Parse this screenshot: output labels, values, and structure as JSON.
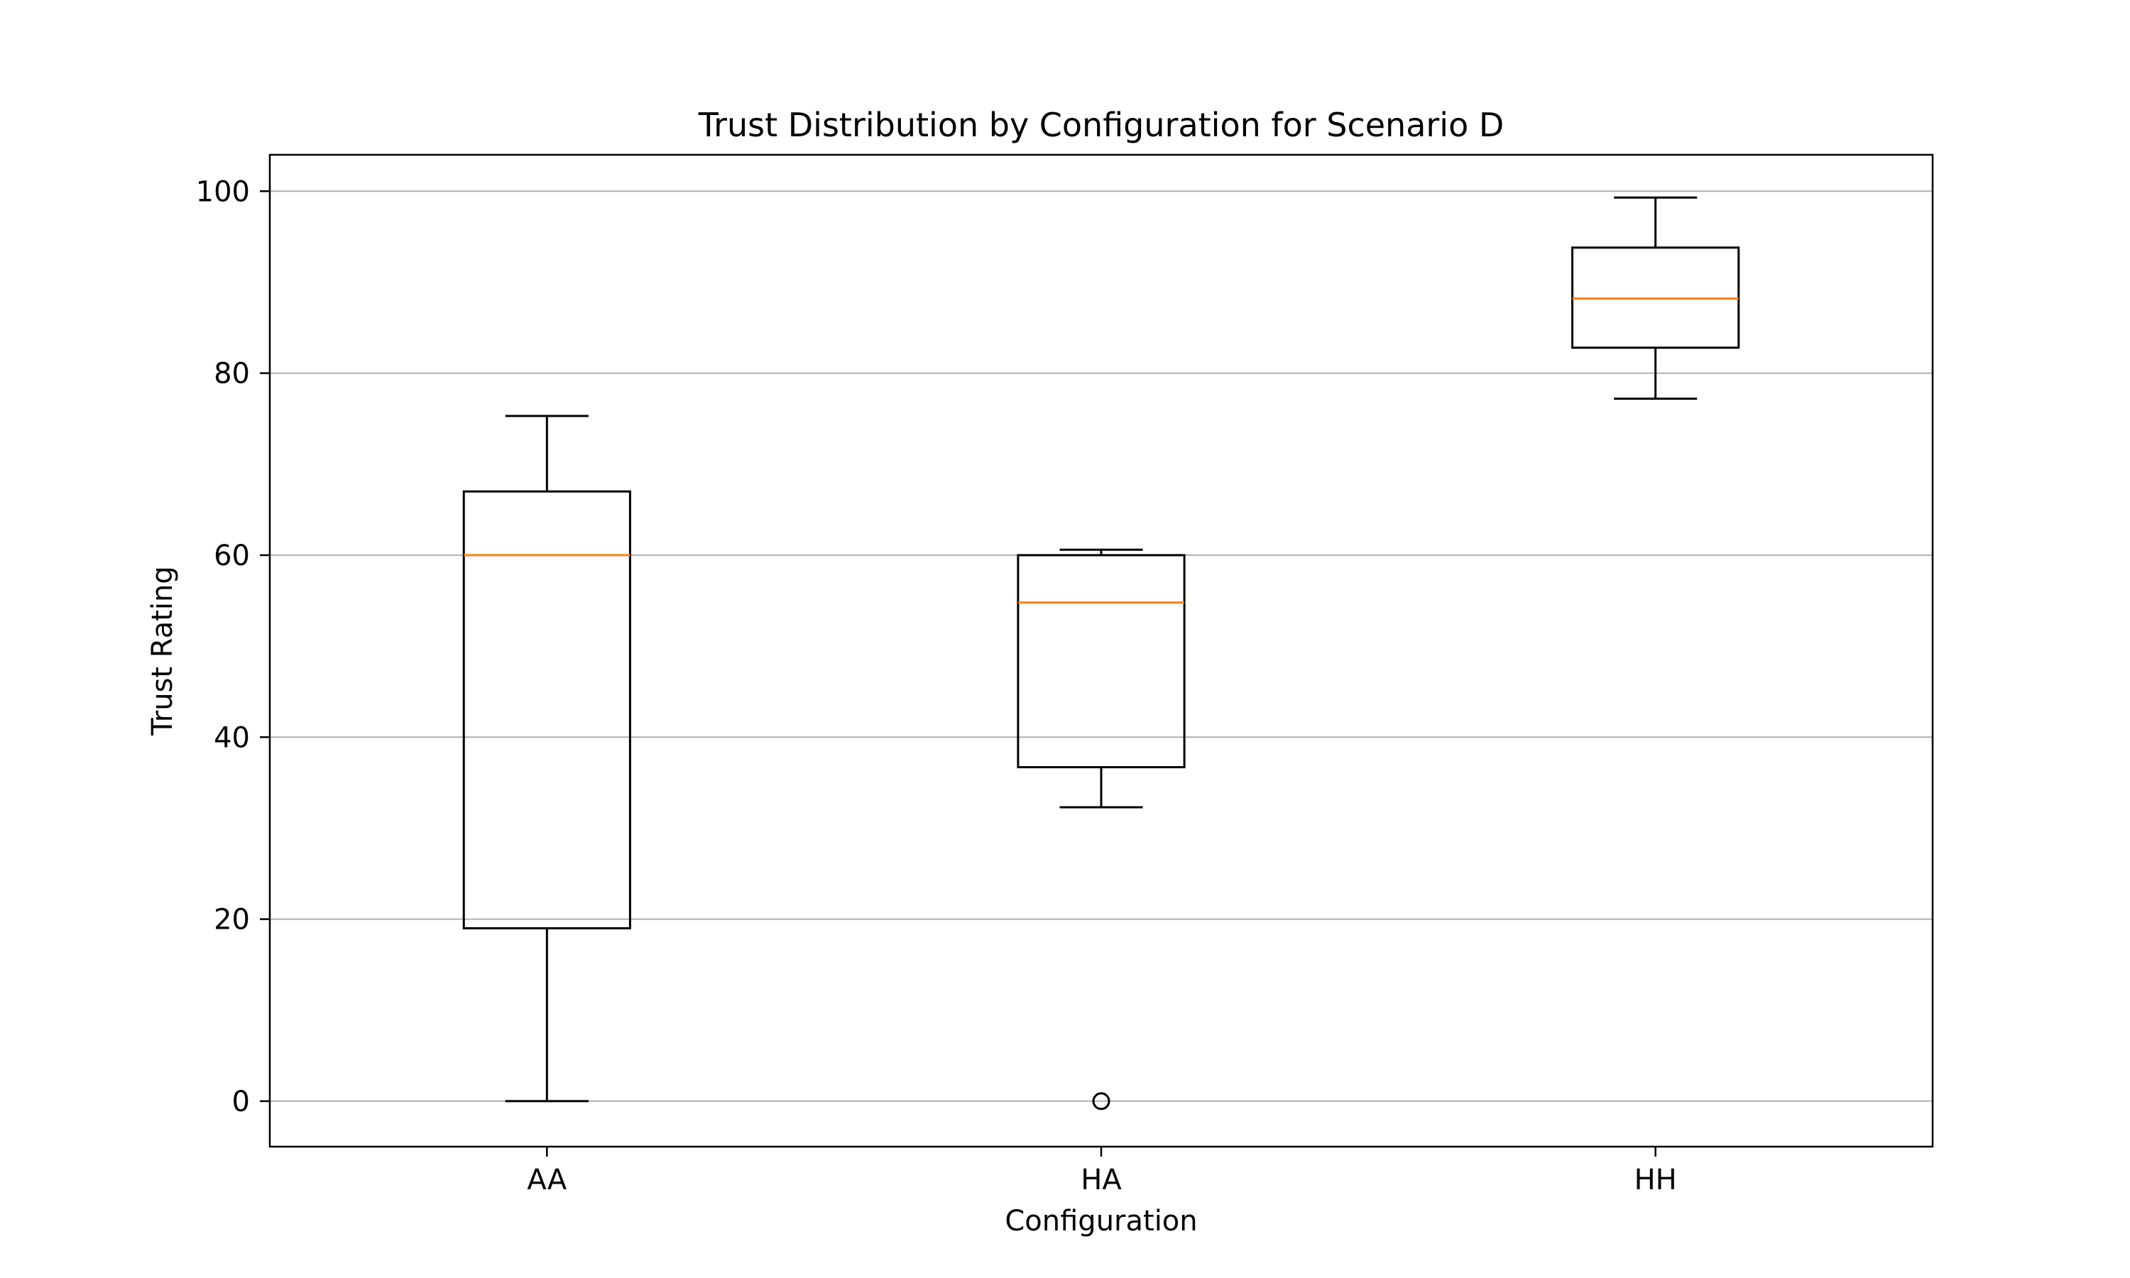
{
  "chart_data": {
    "type": "box",
    "title": "Trust Distribution by Configuration for Scenario D",
    "xlabel": "Configuration",
    "ylabel": "Trust Rating",
    "ylim": [
      -5,
      104
    ],
    "yticks": [
      0,
      20,
      40,
      60,
      80,
      100
    ],
    "grid": "y",
    "categories": [
      "AA",
      "HA",
      "HH"
    ],
    "boxes": [
      {
        "category": "AA",
        "whisker_low": 0,
        "q1": 19,
        "median": 60,
        "q3": 67,
        "whisker_high": 75.3,
        "outliers": []
      },
      {
        "category": "HA",
        "whisker_low": 32.3,
        "q1": 36.7,
        "median": 54.8,
        "q3": 60,
        "whisker_high": 60.6,
        "outliers": [
          0
        ]
      },
      {
        "category": "HH",
        "whisker_low": 77.2,
        "q1": 82.8,
        "median": 88.2,
        "q3": 93.8,
        "whisker_high": 99.3,
        "outliers": []
      }
    ],
    "colors": {
      "box": "#000000",
      "median": "#ff7f0e",
      "grid": "#b0b0b0"
    }
  }
}
